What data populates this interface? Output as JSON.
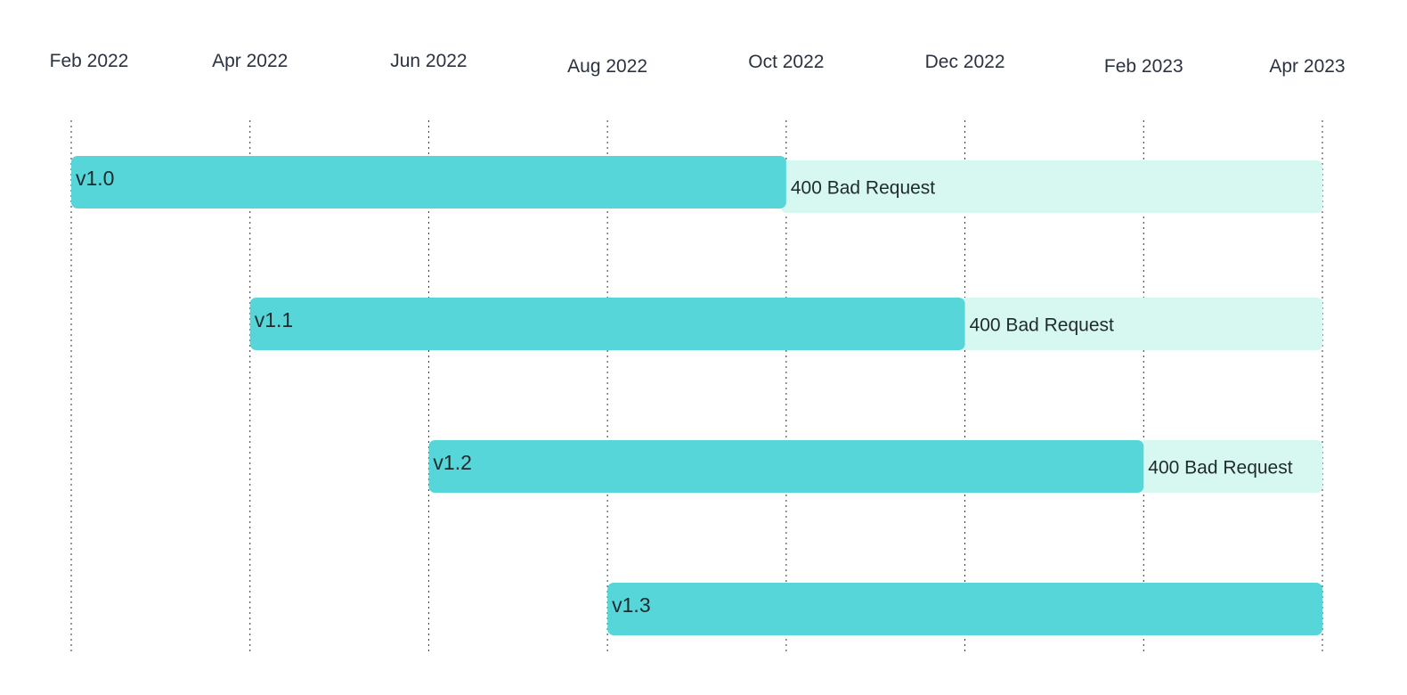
{
  "chart_data": {
    "type": "timeline",
    "title": "",
    "x_axis": {
      "ticks": [
        "Feb 2022",
        "Apr 2022",
        "Jun 2022",
        "Aug 2022",
        "Oct 2022",
        "Dec 2022",
        "Feb 2023",
        "Apr 2023"
      ],
      "range": [
        "2022-02",
        "2023-04"
      ],
      "grid": true
    },
    "rows": [
      {
        "label": "v1.0",
        "start": "2022-02",
        "end": "2022-10",
        "status_start": "2022-10",
        "status_end": "2023-04",
        "status_label": "400 Bad Request"
      },
      {
        "label": "v1.1",
        "start": "2022-04",
        "end": "2022-12",
        "status_start": "2022-12",
        "status_end": "2023-04",
        "status_label": "400 Bad Request"
      },
      {
        "label": "v1.2",
        "start": "2022-06",
        "end": "2023-02",
        "status_start": "2023-02",
        "status_end": "2023-04",
        "status_label": "400 Bad Request"
      },
      {
        "label": "v1.3",
        "start": "2022-08",
        "end": "2023-04",
        "status_start": "",
        "status_end": "",
        "status_label": ""
      }
    ],
    "colors": {
      "bar": "#56d6d8",
      "status": "#d7f8f1",
      "text": "#1f2a2e",
      "tick_text": "#2b3340",
      "grid": "#333333"
    }
  }
}
